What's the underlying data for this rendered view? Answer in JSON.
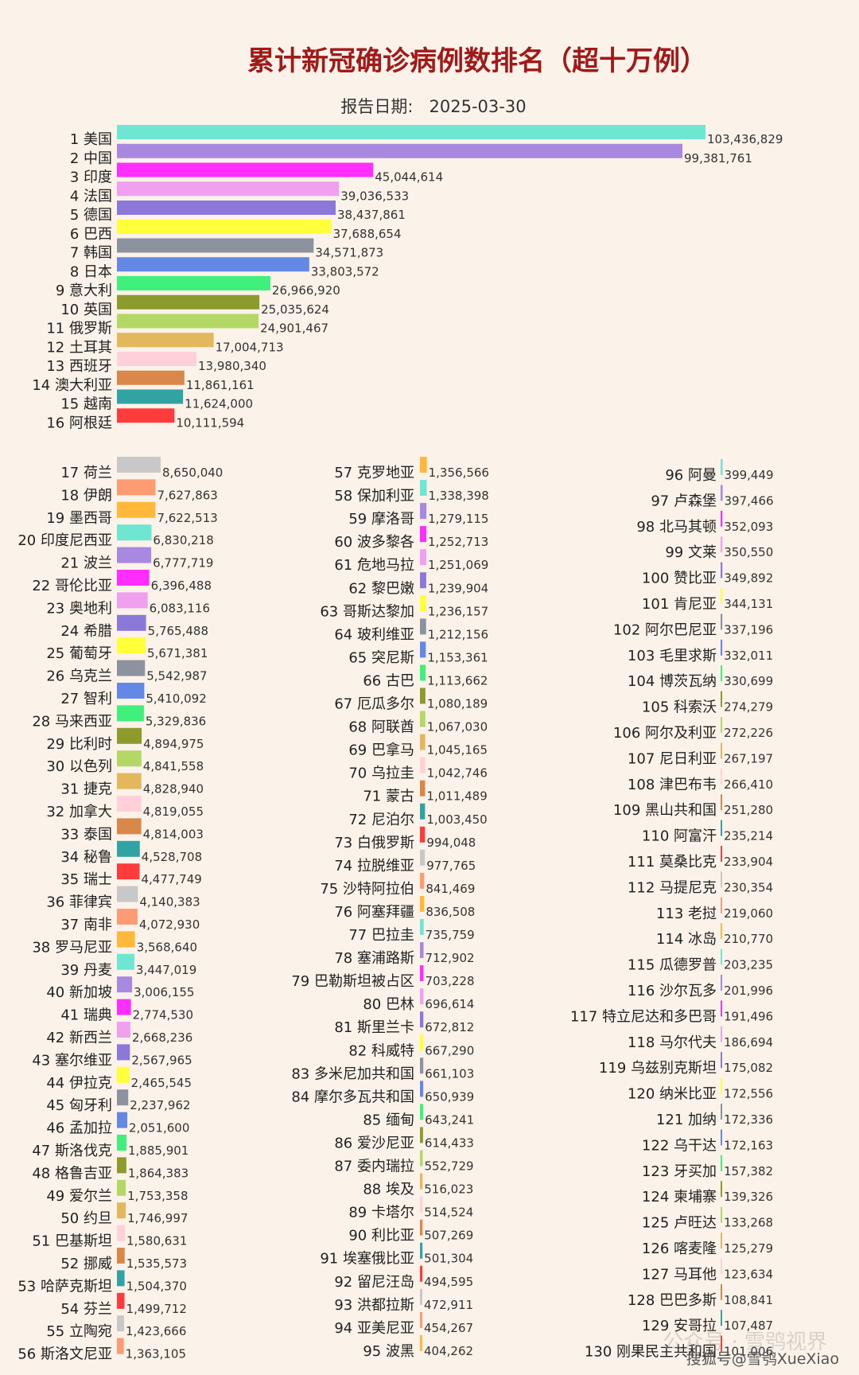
{
  "colors": [
    "#6ee6d2",
    "#a888e0",
    "#ff2dff",
    "#f0a0ee",
    "#8b78d8",
    "#ffff3a",
    "#8c939e",
    "#6488e6",
    "#3ff07a",
    "#8c9b2c",
    "#b3d865",
    "#e3b85c",
    "#ffd0da",
    "#d9884a",
    "#32a3a3",
    "#ff3b3b",
    "#c8c8c8",
    "#ff9b72",
    "#ffb83a"
  ],
  "watermark": {
    "text": "搜狐号@雪鸮XueXiao",
    "faint": "公众号 · 雪鸮视界"
  },
  "chart_data": {
    "type": "bar",
    "orientation": "horizontal",
    "title": "累计新冠确诊病例数排名（超十万例）",
    "subtitle": "报告日期:   2025-03-30",
    "rows": [
      {
        "rank": 1,
        "name": "美国",
        "value": 103436829,
        "label": "103,436,829"
      },
      {
        "rank": 2,
        "name": "中国",
        "value": 99381761,
        "label": "99,381,761"
      },
      {
        "rank": 3,
        "name": "印度",
        "value": 45044614,
        "label": "45,044,614"
      },
      {
        "rank": 4,
        "name": "法国",
        "value": 39036533,
        "label": "39,036,533"
      },
      {
        "rank": 5,
        "name": "德国",
        "value": 38437861,
        "label": "38,437,861"
      },
      {
        "rank": 6,
        "name": "巴西",
        "value": 37688654,
        "label": "37,688,654"
      },
      {
        "rank": 7,
        "name": "韩国",
        "value": 34571873,
        "label": "34,571,873"
      },
      {
        "rank": 8,
        "name": "日本",
        "value": 33803572,
        "label": "33,803,572"
      },
      {
        "rank": 9,
        "name": "意大利",
        "value": 26966920,
        "label": "26,966,920"
      },
      {
        "rank": 10,
        "name": "英国",
        "value": 25035624,
        "label": "25,035,624"
      },
      {
        "rank": 11,
        "name": "俄罗斯",
        "value": 24901467,
        "label": "24,901,467"
      },
      {
        "rank": 12,
        "name": "土耳其",
        "value": 17004713,
        "label": "17,004,713"
      },
      {
        "rank": 13,
        "name": "西班牙",
        "value": 13980340,
        "label": "13,980,340"
      },
      {
        "rank": 14,
        "name": "澳大利亚",
        "value": 11861161,
        "label": "11,861,161"
      },
      {
        "rank": 15,
        "name": "越南",
        "value": 11624000,
        "label": "11,624,000"
      },
      {
        "rank": 16,
        "name": "阿根廷",
        "value": 10111594,
        "label": "10,111,594"
      },
      {
        "rank": 17,
        "name": "荷兰",
        "value": 8650040,
        "label": "8,650,040"
      },
      {
        "rank": 18,
        "name": "伊朗",
        "value": 7627863,
        "label": "7,627,863"
      },
      {
        "rank": 19,
        "name": "墨西哥",
        "value": 7622513,
        "label": "7,622,513"
      },
      {
        "rank": 20,
        "name": "印度尼西亚",
        "value": 6830218,
        "label": "6,830,218"
      },
      {
        "rank": 21,
        "name": "波兰",
        "value": 6777719,
        "label": "6,777,719"
      },
      {
        "rank": 22,
        "name": "哥伦比亚",
        "value": 6396488,
        "label": "6,396,488"
      },
      {
        "rank": 23,
        "name": "奥地利",
        "value": 6083116,
        "label": "6,083,116"
      },
      {
        "rank": 24,
        "name": "希腊",
        "value": 5765488,
        "label": "5,765,488"
      },
      {
        "rank": 25,
        "name": "葡萄牙",
        "value": 5671381,
        "label": "5,671,381"
      },
      {
        "rank": 26,
        "name": "乌克兰",
        "value": 5542987,
        "label": "5,542,987"
      },
      {
        "rank": 27,
        "name": "智利",
        "value": 5410092,
        "label": "5,410,092"
      },
      {
        "rank": 28,
        "name": "马来西亚",
        "value": 5329836,
        "label": "5,329,836"
      },
      {
        "rank": 29,
        "name": "比利时",
        "value": 4894975,
        "label": "4,894,975"
      },
      {
        "rank": 30,
        "name": "以色列",
        "value": 4841558,
        "label": "4,841,558"
      },
      {
        "rank": 31,
        "name": "捷克",
        "value": 4828940,
        "label": "4,828,940"
      },
      {
        "rank": 32,
        "name": "加拿大",
        "value": 4819055,
        "label": "4,819,055"
      },
      {
        "rank": 33,
        "name": "泰国",
        "value": 4814003,
        "label": "4,814,003"
      },
      {
        "rank": 34,
        "name": "秘鲁",
        "value": 4528708,
        "label": "4,528,708"
      },
      {
        "rank": 35,
        "name": "瑞士",
        "value": 4477749,
        "label": "4,477,749"
      },
      {
        "rank": 36,
        "name": "菲律宾",
        "value": 4140383,
        "label": "4,140,383"
      },
      {
        "rank": 37,
        "name": "南非",
        "value": 4072930,
        "label": "4,072,930"
      },
      {
        "rank": 38,
        "name": "罗马尼亚",
        "value": 3568640,
        "label": "3,568,640"
      },
      {
        "rank": 39,
        "name": "丹麦",
        "value": 3447019,
        "label": "3,447,019"
      },
      {
        "rank": 40,
        "name": "新加坡",
        "value": 3006155,
        "label": "3,006,155"
      },
      {
        "rank": 41,
        "name": "瑞典",
        "value": 2774530,
        "label": "2,774,530"
      },
      {
        "rank": 42,
        "name": "新西兰",
        "value": 2668236,
        "label": "2,668,236"
      },
      {
        "rank": 43,
        "name": "塞尔维亚",
        "value": 2567965,
        "label": "2,567,965"
      },
      {
        "rank": 44,
        "name": "伊拉克",
        "value": 2465545,
        "label": "2,465,545"
      },
      {
        "rank": 45,
        "name": "匈牙利",
        "value": 2237962,
        "label": "2,237,962"
      },
      {
        "rank": 46,
        "name": "孟加拉",
        "value": 2051600,
        "label": "2,051,600"
      },
      {
        "rank": 47,
        "name": "斯洛伐克",
        "value": 1885901,
        "label": "1,885,901"
      },
      {
        "rank": 48,
        "name": "格鲁吉亚",
        "value": 1864383,
        "label": "1,864,383"
      },
      {
        "rank": 49,
        "name": "爱尔兰",
        "value": 1753358,
        "label": "1,753,358"
      },
      {
        "rank": 50,
        "name": "约旦",
        "value": 1746997,
        "label": "1,746,997"
      },
      {
        "rank": 51,
        "name": "巴基斯坦",
        "value": 1580631,
        "label": "1,580,631"
      },
      {
        "rank": 52,
        "name": "挪威",
        "value": 1535573,
        "label": "1,535,573"
      },
      {
        "rank": 53,
        "name": "哈萨克斯坦",
        "value": 1504370,
        "label": "1,504,370"
      },
      {
        "rank": 54,
        "name": "芬兰",
        "value": 1499712,
        "label": "1,499,712"
      },
      {
        "rank": 55,
        "name": "立陶宛",
        "value": 1423666,
        "label": "1,423,666"
      },
      {
        "rank": 56,
        "name": "斯洛文尼亚",
        "value": 1363105,
        "label": "1,363,105"
      },
      {
        "rank": 57,
        "name": "克罗地亚",
        "value": 1356566,
        "label": "1,356,566"
      },
      {
        "rank": 58,
        "name": "保加利亚",
        "value": 1338398,
        "label": "1,338,398"
      },
      {
        "rank": 59,
        "name": "摩洛哥",
        "value": 1279115,
        "label": "1,279,115"
      },
      {
        "rank": 60,
        "name": "波多黎各",
        "value": 1252713,
        "label": "1,252,713"
      },
      {
        "rank": 61,
        "name": "危地马拉",
        "value": 1251069,
        "label": "1,251,069"
      },
      {
        "rank": 62,
        "name": "黎巴嫩",
        "value": 1239904,
        "label": "1,239,904"
      },
      {
        "rank": 63,
        "name": "哥斯达黎加",
        "value": 1236157,
        "label": "1,236,157"
      },
      {
        "rank": 64,
        "name": "玻利维亚",
        "value": 1212156,
        "label": "1,212,156"
      },
      {
        "rank": 65,
        "name": "突尼斯",
        "value": 1153361,
        "label": "1,153,361"
      },
      {
        "rank": 66,
        "name": "古巴",
        "value": 1113662,
        "label": "1,113,662"
      },
      {
        "rank": 67,
        "name": "厄瓜多尔",
        "value": 1080189,
        "label": "1,080,189"
      },
      {
        "rank": 68,
        "name": "阿联酋",
        "value": 1067030,
        "label": "1,067,030"
      },
      {
        "rank": 69,
        "name": "巴拿马",
        "value": 1045165,
        "label": "1,045,165"
      },
      {
        "rank": 70,
        "name": "乌拉圭",
        "value": 1042746,
        "label": "1,042,746"
      },
      {
        "rank": 71,
        "name": "蒙古",
        "value": 1011489,
        "label": "1,011,489"
      },
      {
        "rank": 72,
        "name": "尼泊尔",
        "value": 1003450,
        "label": "1,003,450"
      },
      {
        "rank": 73,
        "name": "白俄罗斯",
        "value": 994048,
        "label": "994,048"
      },
      {
        "rank": 74,
        "name": "拉脱维亚",
        "value": 977765,
        "label": "977,765"
      },
      {
        "rank": 75,
        "name": "沙特阿拉伯",
        "value": 841469,
        "label": "841,469"
      },
      {
        "rank": 76,
        "name": "阿塞拜疆",
        "value": 836508,
        "label": "836,508"
      },
      {
        "rank": 77,
        "name": "巴拉圭",
        "value": 735759,
        "label": "735,759"
      },
      {
        "rank": 78,
        "name": "塞浦路斯",
        "value": 712902,
        "label": "712,902"
      },
      {
        "rank": 79,
        "name": "巴勒斯坦被占区",
        "value": 703228,
        "label": "703,228"
      },
      {
        "rank": 80,
        "name": "巴林",
        "value": 696614,
        "label": "696,614"
      },
      {
        "rank": 81,
        "name": "斯里兰卡",
        "value": 672812,
        "label": "672,812"
      },
      {
        "rank": 82,
        "name": "科威特",
        "value": 667290,
        "label": "667,290"
      },
      {
        "rank": 83,
        "name": "多米尼加共和国",
        "value": 661103,
        "label": "661,103"
      },
      {
        "rank": 84,
        "name": "摩尔多瓦共和国",
        "value": 650939,
        "label": "650,939"
      },
      {
        "rank": 85,
        "name": "缅甸",
        "value": 643241,
        "label": "643,241"
      },
      {
        "rank": 86,
        "name": "爱沙尼亚",
        "value": 614433,
        "label": "614,433"
      },
      {
        "rank": 87,
        "name": "委内瑞拉",
        "value": 552729,
        "label": "552,729"
      },
      {
        "rank": 88,
        "name": "埃及",
        "value": 516023,
        "label": "516,023"
      },
      {
        "rank": 89,
        "name": "卡塔尔",
        "value": 514524,
        "label": "514,524"
      },
      {
        "rank": 90,
        "name": "利比亚",
        "value": 507269,
        "label": "507,269"
      },
      {
        "rank": 91,
        "name": "埃塞俄比亚",
        "value": 501304,
        "label": "501,304"
      },
      {
        "rank": 92,
        "name": "留尼汪岛",
        "value": 494595,
        "label": "494,595"
      },
      {
        "rank": 93,
        "name": "洪都拉斯",
        "value": 472911,
        "label": "472,911"
      },
      {
        "rank": 94,
        "name": "亚美尼亚",
        "value": 454267,
        "label": "454,267"
      },
      {
        "rank": 95,
        "name": "波黑",
        "value": 404262,
        "label": "404,262"
      },
      {
        "rank": 96,
        "name": "阿曼",
        "value": 399449,
        "label": "399,449"
      },
      {
        "rank": 97,
        "name": "卢森堡",
        "value": 397466,
        "label": "397,466"
      },
      {
        "rank": 98,
        "name": "北马其顿",
        "value": 352093,
        "label": "352,093"
      },
      {
        "rank": 99,
        "name": "文莱",
        "value": 350550,
        "label": "350,550"
      },
      {
        "rank": 100,
        "name": "赞比亚",
        "value": 349892,
        "label": "349,892"
      },
      {
        "rank": 101,
        "name": "肯尼亚",
        "value": 344131,
        "label": "344,131"
      },
      {
        "rank": 102,
        "name": "阿尔巴尼亚",
        "value": 337196,
        "label": "337,196"
      },
      {
        "rank": 103,
        "name": "毛里求斯",
        "value": 332011,
        "label": "332,011"
      },
      {
        "rank": 104,
        "name": "博茨瓦纳",
        "value": 330699,
        "label": "330,699"
      },
      {
        "rank": 105,
        "name": "科索沃",
        "value": 274279,
        "label": "274,279"
      },
      {
        "rank": 106,
        "name": "阿尔及利亚",
        "value": 272226,
        "label": "272,226"
      },
      {
        "rank": 107,
        "name": "尼日利亚",
        "value": 267197,
        "label": "267,197"
      },
      {
        "rank": 108,
        "name": "津巴布韦",
        "value": 266410,
        "label": "266,410"
      },
      {
        "rank": 109,
        "name": "黑山共和国",
        "value": 251280,
        "label": "251,280"
      },
      {
        "rank": 110,
        "name": "阿富汗",
        "value": 235214,
        "label": "235,214"
      },
      {
        "rank": 111,
        "name": "莫桑比克",
        "value": 233904,
        "label": "233,904"
      },
      {
        "rank": 112,
        "name": "马提尼克",
        "value": 230354,
        "label": "230,354"
      },
      {
        "rank": 113,
        "name": "老挝",
        "value": 219060,
        "label": "219,060"
      },
      {
        "rank": 114,
        "name": "冰岛",
        "value": 210770,
        "label": "210,770"
      },
      {
        "rank": 115,
        "name": "瓜德罗普",
        "value": 203235,
        "label": "203,235"
      },
      {
        "rank": 116,
        "name": "沙尔瓦多",
        "value": 201996,
        "label": "201,996"
      },
      {
        "rank": 117,
        "name": "特立尼达和多巴哥",
        "value": 191496,
        "label": "191,496"
      },
      {
        "rank": 118,
        "name": "马尔代夫",
        "value": 186694,
        "label": "186,694"
      },
      {
        "rank": 119,
        "name": "乌兹别克斯坦",
        "value": 175082,
        "label": "175,082"
      },
      {
        "rank": 120,
        "name": "纳米比亚",
        "value": 172556,
        "label": "172,556"
      },
      {
        "rank": 121,
        "name": "加纳",
        "value": 172336,
        "label": "172,336"
      },
      {
        "rank": 122,
        "name": "乌干达",
        "value": 172163,
        "label": "172,163"
      },
      {
        "rank": 123,
        "name": "牙买加",
        "value": 157382,
        "label": "157,382"
      },
      {
        "rank": 124,
        "name": "柬埔寨",
        "value": 139326,
        "label": "139,326"
      },
      {
        "rank": 125,
        "name": "卢旺达",
        "value": 133268,
        "label": "133,268"
      },
      {
        "rank": 126,
        "name": "喀麦隆",
        "value": 125279,
        "label": "125,279"
      },
      {
        "rank": 127,
        "name": "马耳他",
        "value": 123634,
        "label": "123,634"
      },
      {
        "rank": 128,
        "name": "巴巴多斯",
        "value": 108841,
        "label": "108,841"
      },
      {
        "rank": 129,
        "name": "安哥拉",
        "value": 107487,
        "label": "107,487"
      },
      {
        "rank": 130,
        "name": "刚果民主共和国",
        "value": 101006,
        "label": "101,006"
      }
    ]
  }
}
